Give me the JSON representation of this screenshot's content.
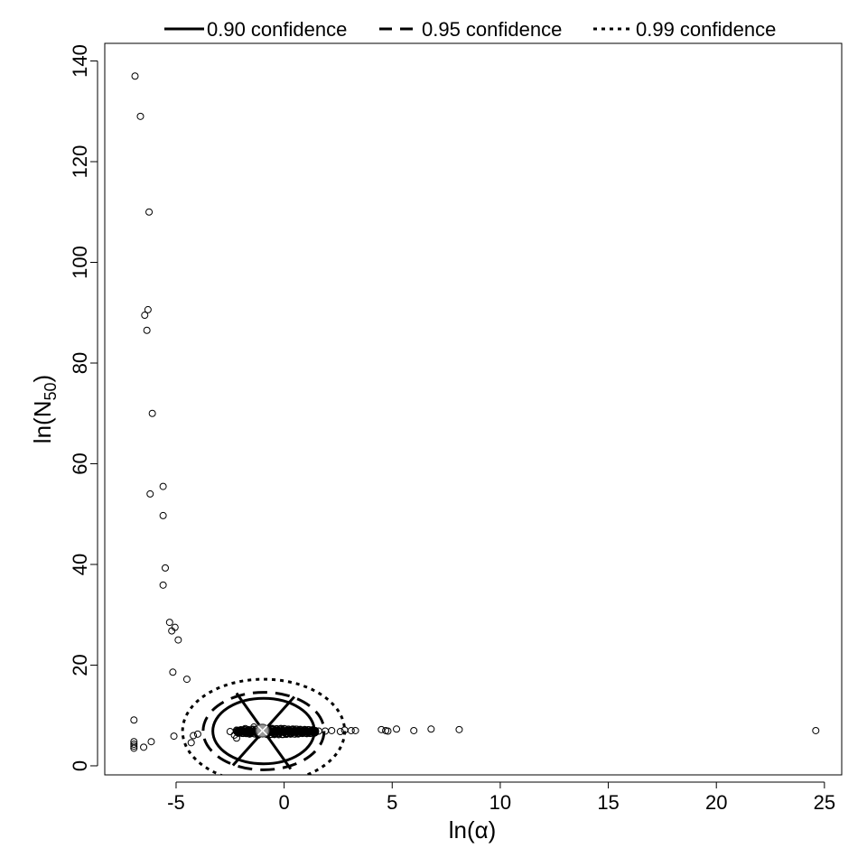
{
  "chart_data": {
    "type": "scatter",
    "title": "",
    "xlabel": "ln(α)",
    "ylabel": "ln(N50)",
    "ylabel_parts": {
      "prefix": "ln(N",
      "sub": "50",
      "suffix": ")"
    },
    "xlim": [
      -8.3,
      25.8
    ],
    "ylim": [
      -1.8,
      143.5
    ],
    "xticks": [
      -5,
      0,
      5,
      10,
      15,
      20,
      25
    ],
    "yticks": [
      0,
      20,
      40,
      60,
      80,
      100,
      120,
      140
    ],
    "grid": false,
    "legend_position": "top, outside plot",
    "legend": [
      {
        "label": "0.90 confidence",
        "style": "solid"
      },
      {
        "label": "0.95 confidence",
        "style": "dashed"
      },
      {
        "label": "0.99 confidence",
        "style": "dotted"
      }
    ],
    "points": [
      [
        -6.9,
        137.0
      ],
      [
        -6.65,
        129.0
      ],
      [
        -6.25,
        110.0
      ],
      [
        -6.3,
        90.6
      ],
      [
        -6.45,
        89.5
      ],
      [
        -6.35,
        86.5
      ],
      [
        -6.1,
        70.0
      ],
      [
        -5.6,
        55.5
      ],
      [
        -6.2,
        54.0
      ],
      [
        -5.6,
        49.7
      ],
      [
        -5.5,
        39.3
      ],
      [
        -5.6,
        35.9
      ],
      [
        -5.3,
        28.5
      ],
      [
        -5.05,
        27.5
      ],
      [
        -5.2,
        26.8
      ],
      [
        -4.9,
        25.0
      ],
      [
        -5.15,
        18.6
      ],
      [
        -4.5,
        17.2
      ],
      [
        -6.95,
        9.1
      ],
      [
        -4.0,
        6.3
      ],
      [
        -4.2,
        6.0
      ],
      [
        -5.1,
        5.9
      ],
      [
        -6.15,
        4.8
      ],
      [
        -4.3,
        4.6
      ],
      [
        -6.95,
        4.8
      ],
      [
        -6.95,
        4.3
      ],
      [
        -6.95,
        3.9
      ],
      [
        -6.95,
        3.5
      ],
      [
        -6.5,
        3.7
      ],
      [
        -2.5,
        6.8
      ],
      [
        -2.3,
        6.1
      ],
      [
        -2.2,
        5.5
      ],
      [
        -2.0,
        6.6
      ],
      [
        -1.8,
        7.4
      ],
      [
        -1.6,
        6.3
      ],
      [
        -1.4,
        7.7
      ],
      [
        -1.2,
        6.1
      ],
      [
        -1.0,
        7.2
      ],
      [
        -0.8,
        6.5
      ],
      [
        -0.6,
        7.4
      ],
      [
        -0.4,
        6.4
      ],
      [
        -0.2,
        7.1
      ],
      [
        0.0,
        6.6
      ],
      [
        0.2,
        7.0
      ],
      [
        0.4,
        6.6
      ],
      [
        0.6,
        7.0
      ],
      [
        0.8,
        6.8
      ],
      [
        1.0,
        7.1
      ],
      [
        1.2,
        6.8
      ],
      [
        1.4,
        7.0
      ],
      [
        1.6,
        6.9
      ],
      [
        1.9,
        6.9
      ],
      [
        2.2,
        7.0
      ],
      [
        2.6,
        6.8
      ],
      [
        2.8,
        7.1
      ],
      [
        3.1,
        7.0
      ],
      [
        3.3,
        7.0
      ],
      [
        4.5,
        7.2
      ],
      [
        4.7,
        7.0
      ],
      [
        4.8,
        6.9
      ],
      [
        5.2,
        7.3
      ],
      [
        6.0,
        7.0
      ],
      [
        6.8,
        7.3
      ],
      [
        8.1,
        7.2
      ],
      [
        24.6,
        7.0
      ]
    ],
    "band_center": {
      "x_from": -2.2,
      "x_to": 1.5,
      "y": 6.8
    },
    "ellipses": [
      {
        "level": "0.90 confidence",
        "cx": -0.95,
        "cy": 6.9,
        "rx": 2.35,
        "ry": 6.5,
        "style": "solid"
      },
      {
        "level": "0.95 confidence",
        "cx": -0.95,
        "cy": 6.9,
        "rx": 2.8,
        "ry": 7.7,
        "style": "dashed"
      },
      {
        "level": "0.99 confidence",
        "cx": -0.95,
        "cy": 6.9,
        "rx": 3.75,
        "ry": 10.3,
        "style": "dotted"
      }
    ],
    "point_estimate": {
      "x": -1.0,
      "y": 7.0
    }
  }
}
